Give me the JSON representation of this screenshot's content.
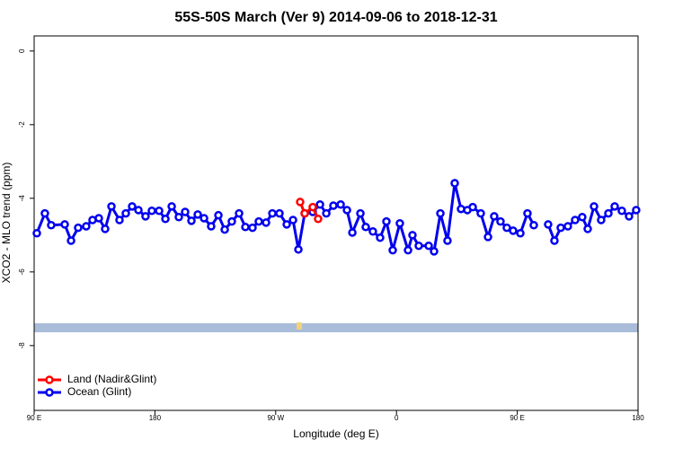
{
  "chart_data": {
    "type": "line",
    "title": "55S-50S March (Ver 9)   2014-09-06 to 2018-12-31",
    "xlabel": "Longitude (deg E)",
    "ylabel": "XCO2 - MLO trend (ppm)",
    "xlim": [
      90,
      540
    ],
    "xticks": [
      {
        "value": 90,
        "label": "90 E"
      },
      {
        "value": 180,
        "label": "180"
      },
      {
        "value": 270,
        "label": "90 W"
      },
      {
        "value": 360,
        "label": "0"
      },
      {
        "value": 450,
        "label": "90 E"
      },
      {
        "value": 540,
        "label": "180"
      }
    ],
    "ylim": [
      -9.76,
      0.41
    ],
    "yticks": [
      -8,
      -6,
      -4,
      -2,
      0
    ],
    "legend": "bottom-left",
    "series": [
      {
        "name": "Land (Nadir&Glint)",
        "color": "#ff0000",
        "x": [
          288.2,
          291.6,
          297.6,
          301.6
        ],
        "values": [
          -4.1,
          -4.41,
          -4.24,
          -4.56
        ]
      },
      {
        "name": "Ocean (Glint)",
        "color": "#0000ee",
        "x": [
          92.0,
          98.0,
          102.7,
          112.8,
          117.5,
          122.8,
          128.8,
          133.5,
          138.2,
          142.9,
          147.6,
          153.6,
          158.3,
          163.0,
          167.7,
          173.0,
          177.7,
          183.1,
          187.8,
          192.5,
          197.8,
          202.5,
          207.2,
          211.9,
          216.6,
          221.9,
          227.3,
          232.0,
          237.3,
          242.7,
          247.4,
          252.7,
          257.4,
          262.8,
          267.5,
          272.8,
          278.2,
          282.9,
          286.9,
          291.6,
          297.6,
          303.0,
          307.7,
          313.0,
          318.4,
          323.1,
          327.1,
          333.1,
          337.1,
          342.4,
          347.8,
          352.5,
          357.2,
          362.5,
          368.6,
          371.9,
          376.6,
          384.0,
          388.0,
          392.7,
          398.0,
          403.4,
          408.1,
          412.8,
          416.8,
          422.8,
          428.2,
          432.8,
          437.5,
          442.2,
          446.9,
          452.3,
          457.6,
          462.3,
          467.6,
          473.0,
          477.7,
          482.4,
          487.7,
          493.1,
          498.4,
          502.5,
          507.2,
          512.5,
          517.9,
          522.6,
          527.9,
          533.3,
          538.6
        ],
        "values": [
          -4.95,
          -4.41,
          -4.73,
          -4.71,
          -5.15,
          -4.8,
          -4.76,
          -4.59,
          -4.54,
          -4.83,
          -4.22,
          -4.59,
          -4.41,
          -4.22,
          -4.32,
          -4.49,
          -4.34,
          -4.34,
          -4.56,
          -4.22,
          -4.51,
          -4.37,
          -4.61,
          -4.44,
          -4.54,
          -4.76,
          -4.46,
          -4.85,
          -4.63,
          -4.41,
          -4.78,
          -4.8,
          -4.63,
          -4.66,
          -4.41,
          -4.41,
          -4.71,
          -4.59,
          -5.39,
          -4.41,
          -4.37,
          -4.17,
          -4.41,
          -4.2,
          -4.17,
          -4.32,
          -4.93,
          -4.41,
          -4.78,
          -4.9,
          -5.07,
          -4.63,
          -5.41,
          -4.68,
          -5.41,
          -5.0,
          -5.29,
          -5.29,
          -5.44,
          -4.41,
          -5.15,
          -3.59,
          -4.29,
          -4.32,
          -4.24,
          -4.41,
          -5.05,
          -4.49,
          -4.63,
          -4.8,
          -4.88,
          -4.95,
          -4.41,
          -4.73,
          null,
          -4.71,
          -5.15,
          -4.8,
          -4.76,
          -4.59,
          -4.51,
          -4.83,
          -4.22,
          -4.59,
          -4.41,
          -4.22,
          -4.34,
          -4.49,
          -4.32
        ]
      }
    ]
  }
}
